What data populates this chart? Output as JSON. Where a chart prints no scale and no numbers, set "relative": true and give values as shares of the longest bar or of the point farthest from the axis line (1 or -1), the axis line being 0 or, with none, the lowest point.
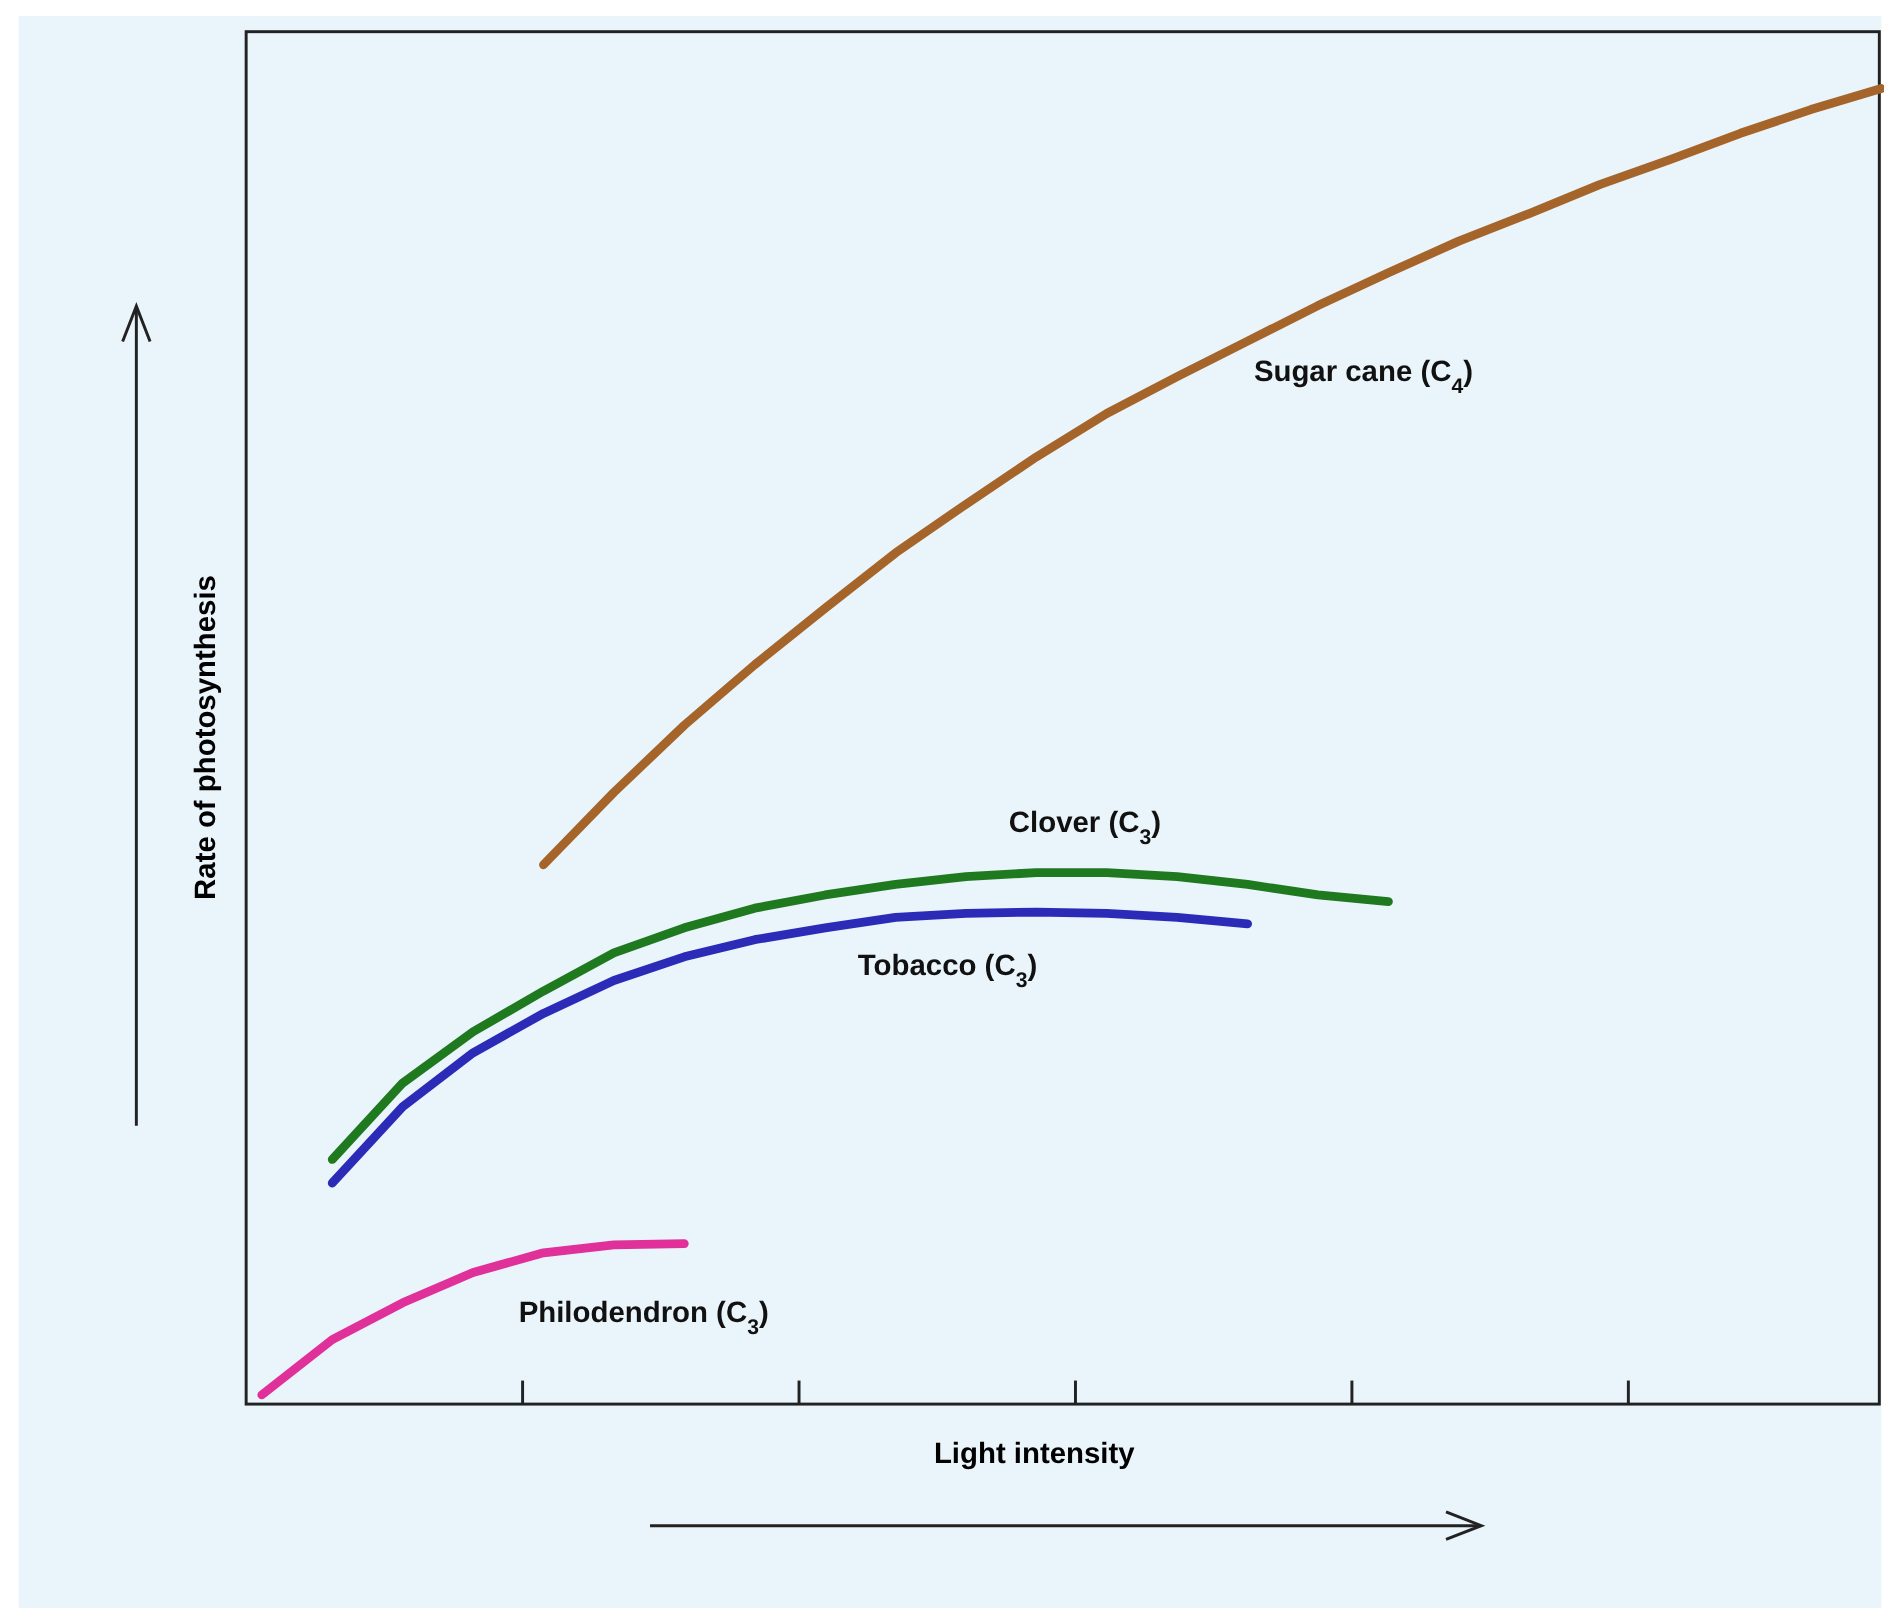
{
  "chart_data": {
    "type": "line",
    "relative": true,
    "xlabel": "Light intensity",
    "ylabel": "Rate of photosynthesis",
    "grid": false,
    "legend": false,
    "marker": "none",
    "line_style": "solid",
    "categories": [
      null,
      null,
      null,
      null,
      null,
      null,
      null,
      null,
      null,
      null,
      null,
      null,
      null,
      null,
      null,
      null,
      null,
      null,
      null,
      null,
      null,
      null,
      null,
      null
    ],
    "series": [
      {
        "name": "Sugar cane (C$_{4}$)",
        "color": "#a5652a",
        "values": [
          null,
          null,
          null,
          null,
          0.41,
          0.465,
          0.516,
          0.562,
          0.605,
          0.647,
          0.684,
          0.72,
          0.753,
          0.781,
          0.808,
          0.835,
          0.86,
          0.884,
          0.905,
          0.927,
          0.946,
          0.966,
          0.984,
          1
        ]
      },
      {
        "name": "Clover (C$_{3}$)",
        "color": "#1f7a1f",
        "values": [
          null,
          0.186,
          0.244,
          0.283,
          0.314,
          0.343,
          0.362,
          0.377,
          0.387,
          0.395,
          0.401,
          0.404,
          0.404,
          0.401,
          0.395,
          0.387,
          0.382,
          null,
          null,
          null,
          null,
          null,
          null,
          null
        ]
      },
      {
        "name": "Tobacco (C$_{3}$)",
        "color": "#2b2bb8",
        "values": [
          null,
          0.168,
          0.226,
          0.267,
          0.297,
          0.322,
          0.34,
          0.353,
          0.362,
          0.37,
          0.373,
          0.374,
          0.373,
          0.37,
          0.365,
          null,
          null,
          null,
          null,
          null,
          null,
          null,
          null,
          null
        ]
      },
      {
        "name": "Philodendron (C$_{3}$)",
        "color": "#e0309a",
        "values": [
          0.007,
          0.049,
          0.077,
          0.1,
          0.115,
          0.121,
          0.122,
          null,
          null,
          null,
          null,
          null,
          null,
          null,
          null,
          null,
          null,
          null,
          null,
          null,
          null,
          null,
          null,
          null
        ]
      }
    ]
  }
}
